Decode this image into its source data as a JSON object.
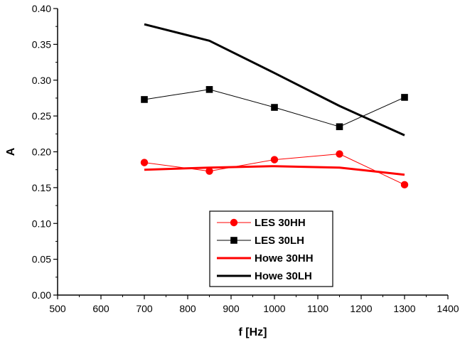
{
  "chart_data": {
    "type": "line",
    "title": "",
    "xlabel": "f [Hz]",
    "ylabel": "A",
    "xlim": [
      500,
      1400
    ],
    "ylim": [
      0,
      0.4
    ],
    "x_ticks": [
      "500",
      "600",
      "700",
      "800",
      "900",
      "1000",
      "1100",
      "1200",
      "1300",
      "1400"
    ],
    "y_ticks": [
      "0.00",
      "0.05",
      "0.10",
      "0.15",
      "0.20",
      "0.25",
      "0.30",
      "0.35",
      "0.40"
    ],
    "grid": false,
    "legend_position": "bottom-center",
    "series": [
      {
        "name": "LES 30HH",
        "color": "#ff0000",
        "marker": "circle",
        "line": "thin",
        "x": [
          700,
          850,
          1000,
          1150,
          1300
        ],
        "y": [
          0.185,
          0.173,
          0.189,
          0.197,
          0.154
        ]
      },
      {
        "name": "LES 30LH",
        "color": "#000000",
        "marker": "square",
        "line": "thin",
        "x": [
          700,
          850,
          1000,
          1150,
          1300
        ],
        "y": [
          0.273,
          0.287,
          0.262,
          0.235,
          0.276
        ]
      },
      {
        "name": "Howe 30HH",
        "color": "#ff0000",
        "marker": "none",
        "line": "thick",
        "x": [
          700,
          850,
          1000,
          1150,
          1300
        ],
        "y": [
          0.175,
          0.178,
          0.18,
          0.178,
          0.168
        ]
      },
      {
        "name": "Howe 30LH",
        "color": "#000000",
        "marker": "none",
        "line": "thick",
        "x": [
          700,
          850,
          1000,
          1150,
          1300
        ],
        "y": [
          0.378,
          0.355,
          0.31,
          0.264,
          0.223
        ]
      }
    ]
  }
}
